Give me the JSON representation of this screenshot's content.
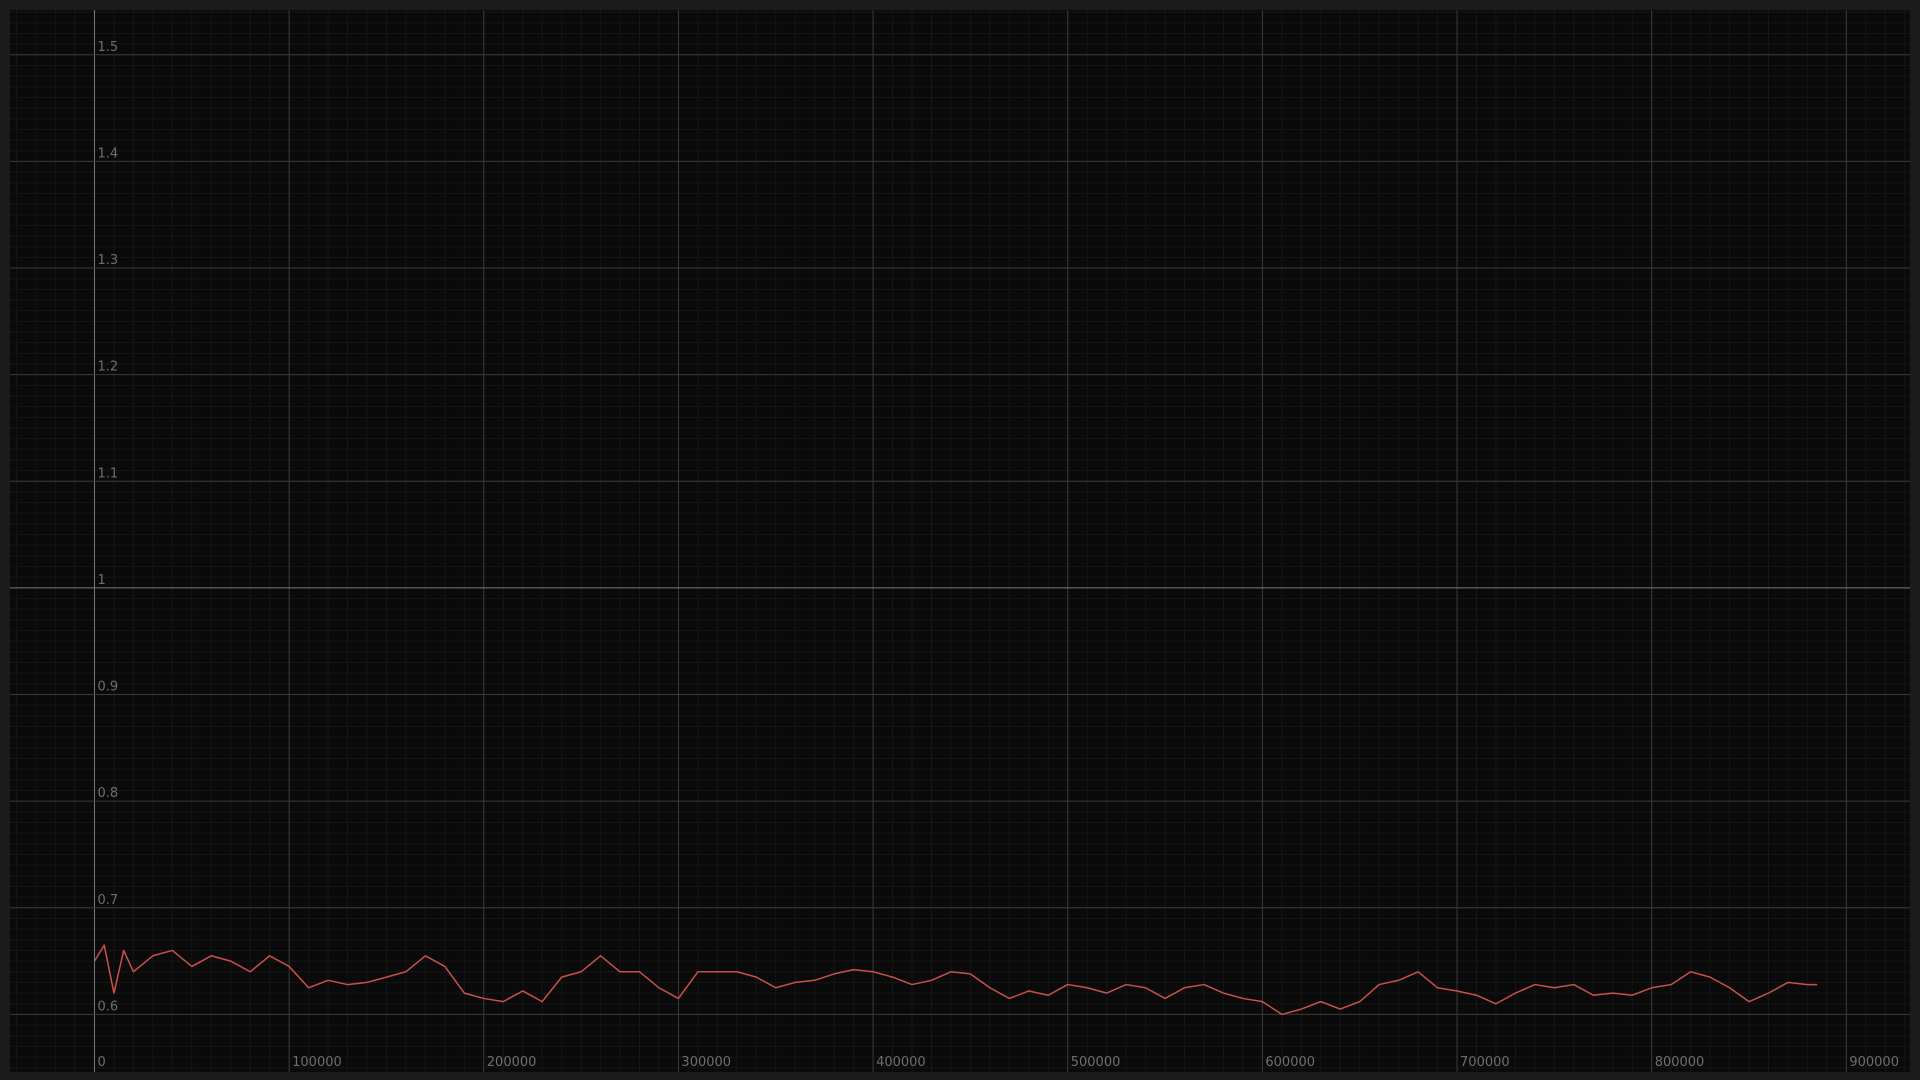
{
  "chart_data": {
    "type": "line",
    "x": [
      0,
      5000,
      10000,
      15000,
      20000,
      30000,
      40000,
      50000,
      60000,
      70000,
      80000,
      90000,
      100000,
      110000,
      120000,
      130000,
      140000,
      150000,
      160000,
      170000,
      180000,
      190000,
      200000,
      210000,
      220000,
      230000,
      240000,
      250000,
      260000,
      270000,
      280000,
      290000,
      300000,
      310000,
      320000,
      330000,
      340000,
      350000,
      360000,
      370000,
      380000,
      390000,
      400000,
      410000,
      420000,
      430000,
      440000,
      450000,
      460000,
      470000,
      480000,
      490000,
      500000,
      510000,
      520000,
      530000,
      540000,
      550000,
      560000,
      570000,
      580000,
      590000,
      600000,
      610000,
      620000,
      630000,
      640000,
      650000,
      660000,
      670000,
      680000,
      690000,
      700000,
      710000,
      720000,
      730000,
      740000,
      750000,
      760000,
      770000,
      780000,
      790000,
      800000,
      810000,
      820000,
      830000,
      840000,
      850000,
      860000,
      870000,
      880000,
      885000
    ],
    "series": [
      {
        "color": "#c9504c",
        "values": [
          0.65,
          0.665,
          0.62,
          0.66,
          0.64,
          0.655,
          0.66,
          0.645,
          0.655,
          0.65,
          0.64,
          0.655,
          0.645,
          0.625,
          0.632,
          0.628,
          0.63,
          0.635,
          0.64,
          0.655,
          0.645,
          0.62,
          0.615,
          0.612,
          0.622,
          0.612,
          0.635,
          0.64,
          0.655,
          0.64,
          0.64,
          0.625,
          0.615,
          0.64,
          0.64,
          0.64,
          0.635,
          0.625,
          0.63,
          0.632,
          0.638,
          0.642,
          0.64,
          0.635,
          0.628,
          0.632,
          0.64,
          0.638,
          0.625,
          0.615,
          0.622,
          0.618,
          0.628,
          0.625,
          0.62,
          0.628,
          0.625,
          0.615,
          0.625,
          0.628,
          0.62,
          0.615,
          0.612,
          0.6,
          0.605,
          0.612,
          0.605,
          0.612,
          0.628,
          0.632,
          0.64,
          0.625,
          0.622,
          0.618,
          0.61,
          0.62,
          0.628,
          0.625,
          0.628,
          0.618,
          0.62,
          0.618,
          0.625,
          0.628,
          0.64,
          0.635,
          0.625,
          0.612,
          0.62,
          0.63,
          0.628,
          0.628
        ]
      }
    ],
    "xlim": [
      -43400,
      932700
    ],
    "ylim": [
      0.546,
      1.542
    ],
    "xticks": [
      0,
      100000,
      200000,
      300000,
      400000,
      500000,
      600000,
      700000,
      800000,
      900000
    ],
    "yticks": [
      0.6,
      0.7,
      0.8,
      0.9,
      1,
      1.1,
      1.2,
      1.3,
      1.4,
      1.5
    ],
    "grid": true
  }
}
